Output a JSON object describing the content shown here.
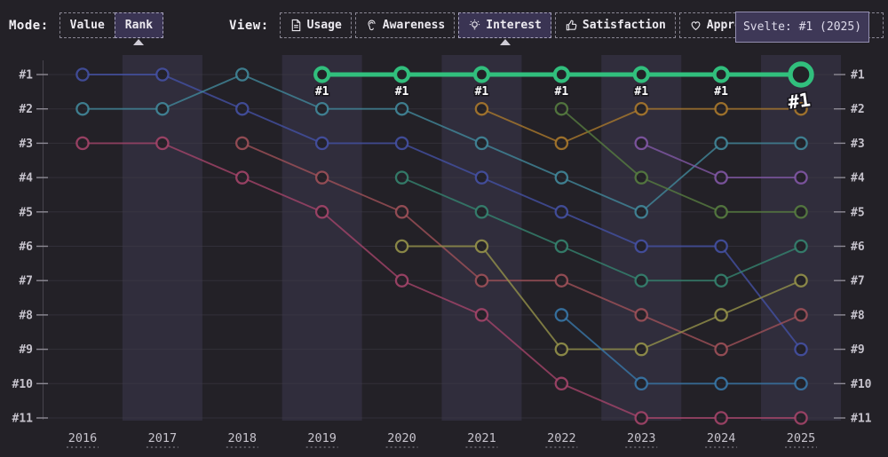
{
  "toolbar": {
    "mode": {
      "label": "Mode:",
      "options": [
        {
          "label": "Value",
          "selected": false
        },
        {
          "label": "Rank",
          "selected": true
        }
      ]
    },
    "view": {
      "label": "View:",
      "options": [
        {
          "label": "Usage",
          "icon": "document-icon",
          "selected": false
        },
        {
          "label": "Awareness",
          "icon": "ear-icon",
          "selected": false
        },
        {
          "label": "Interest",
          "icon": "lightbulb-icon",
          "selected": true
        },
        {
          "label": "Satisfaction",
          "icon": "thumbs-up-icon",
          "selected": false
        },
        {
          "label": "Appreciation",
          "icon": "heart-icon",
          "selected": false
        }
      ]
    }
  },
  "tooltip": {
    "text": "Svelte: #1 (2025)"
  },
  "chart_data": {
    "type": "line",
    "subtype": "bump-rank",
    "x": [
      2016,
      2017,
      2018,
      2019,
      2020,
      2021,
      2022,
      2023,
      2024,
      2025
    ],
    "y_axis": {
      "labels": [
        "#1",
        "#2",
        "#3",
        "#4",
        "#5",
        "#6",
        "#7",
        "#8",
        "#9",
        "#10",
        "#11"
      ],
      "sides": "both",
      "direction": "rank-1-on-top"
    },
    "highlight": {
      "series": "Svelte",
      "point_label": "#1",
      "labeled_years": [
        2019,
        2020,
        2021,
        2022,
        2023,
        2024
      ],
      "final_label": "#1",
      "final_year": 2025
    },
    "series": [
      {
        "name": "indigo-series",
        "color": "#4450a2",
        "ranks": [
          1,
          1,
          2,
          3,
          3,
          4,
          5,
          6,
          6,
          9
        ]
      },
      {
        "name": "teal-series",
        "color": "#41879a",
        "ranks": [
          2,
          2,
          1,
          2,
          2,
          3,
          4,
          5,
          3,
          3
        ]
      },
      {
        "name": "crimson-series",
        "color": "#a34469",
        "ranks": [
          3,
          3,
          4,
          5,
          7,
          8,
          10,
          11,
          11,
          11
        ]
      },
      {
        "name": "brick-series",
        "color": "#9d5058",
        "ranks": [
          null,
          null,
          3,
          4,
          5,
          7,
          7,
          8,
          9,
          8
        ]
      },
      {
        "name": "seagreen-series",
        "color": "#35836f",
        "ranks": [
          null,
          null,
          null,
          null,
          4,
          5,
          6,
          7,
          7,
          6
        ]
      },
      {
        "name": "olive-series",
        "color": "#94914a",
        "ranks": [
          null,
          null,
          null,
          null,
          6,
          6,
          9,
          9,
          8,
          7
        ]
      },
      {
        "name": "orange-series",
        "color": "#a9782c",
        "ranks": [
          null,
          null,
          null,
          null,
          null,
          2,
          3,
          2,
          2,
          2
        ]
      },
      {
        "name": "darkgreen-series",
        "color": "#567c40",
        "ranks": [
          null,
          null,
          null,
          null,
          null,
          null,
          2,
          4,
          5,
          5
        ]
      },
      {
        "name": "steelblue-series",
        "color": "#3877a8",
        "ranks": [
          null,
          null,
          null,
          null,
          null,
          null,
          8,
          10,
          10,
          10
        ]
      },
      {
        "name": "purple-series",
        "color": "#8157a5",
        "ranks": [
          null,
          null,
          null,
          null,
          null,
          null,
          null,
          3,
          4,
          4
        ]
      },
      {
        "name": "Svelte",
        "color": "#31bf7d",
        "highlighted": true,
        "ranks": [
          null,
          null,
          null,
          1,
          1,
          1,
          1,
          1,
          1,
          1
        ]
      }
    ],
    "ui_colors": {
      "background": "#232127",
      "band": "#302d3c",
      "grid": "#403d48",
      "axis": "#57535e",
      "tick": "#8d8a94",
      "axis_label": "#c6c3cc",
      "highlight_green": "#31bf7d",
      "selected_button_bg": "#3a3453",
      "tooltip_bg": "#3e3857",
      "tooltip_border": "#938eb0"
    },
    "layout": {
      "grid": true,
      "bands_on_odd_years": true,
      "legend": "none"
    }
  }
}
